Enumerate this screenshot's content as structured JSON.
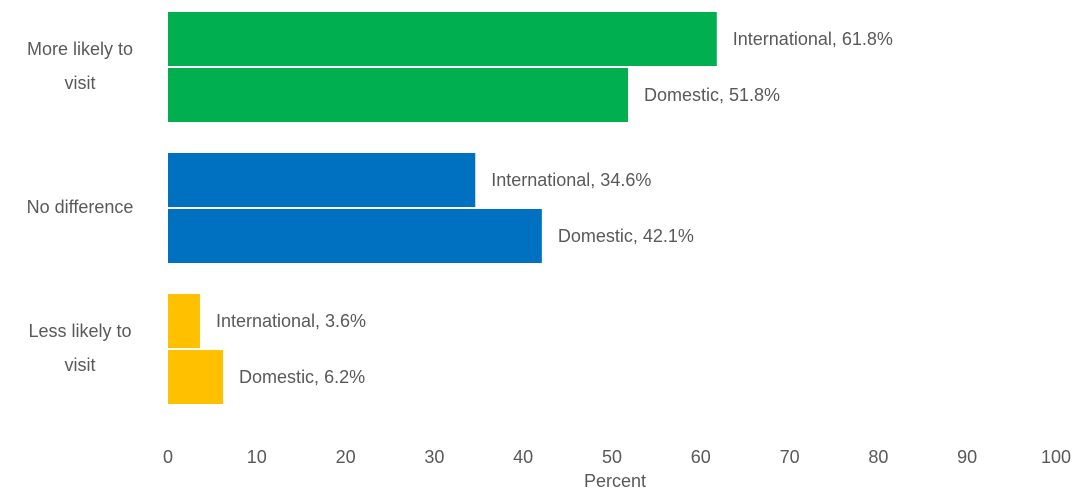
{
  "chart_data": {
    "type": "bar",
    "orientation": "horizontal",
    "categories": [
      [
        "More likely to",
        "visit"
      ],
      [
        "No difference"
      ],
      [
        "Less likely to",
        "visit"
      ]
    ],
    "series": [
      {
        "name": "International",
        "values": [
          61.8,
          34.6,
          3.6
        ]
      },
      {
        "name": "Domestic",
        "values": [
          51.8,
          42.1,
          6.2
        ]
      }
    ],
    "data_labels": [
      [
        "International, 61.8%",
        "Domestic, 51.8%"
      ],
      [
        "International, 34.6%",
        "Domestic, 42.1%"
      ],
      [
        "International, 3.6%",
        "Domestic, 6.2%"
      ]
    ],
    "category_colors": [
      "#00B050",
      "#0070C0",
      "#FFC000"
    ],
    "xlabel": "Percent",
    "xlim": [
      0,
      100
    ],
    "xticks": [
      0,
      10,
      20,
      30,
      40,
      50,
      60,
      70,
      80,
      90,
      100
    ],
    "grid": false,
    "legend": "none"
  }
}
